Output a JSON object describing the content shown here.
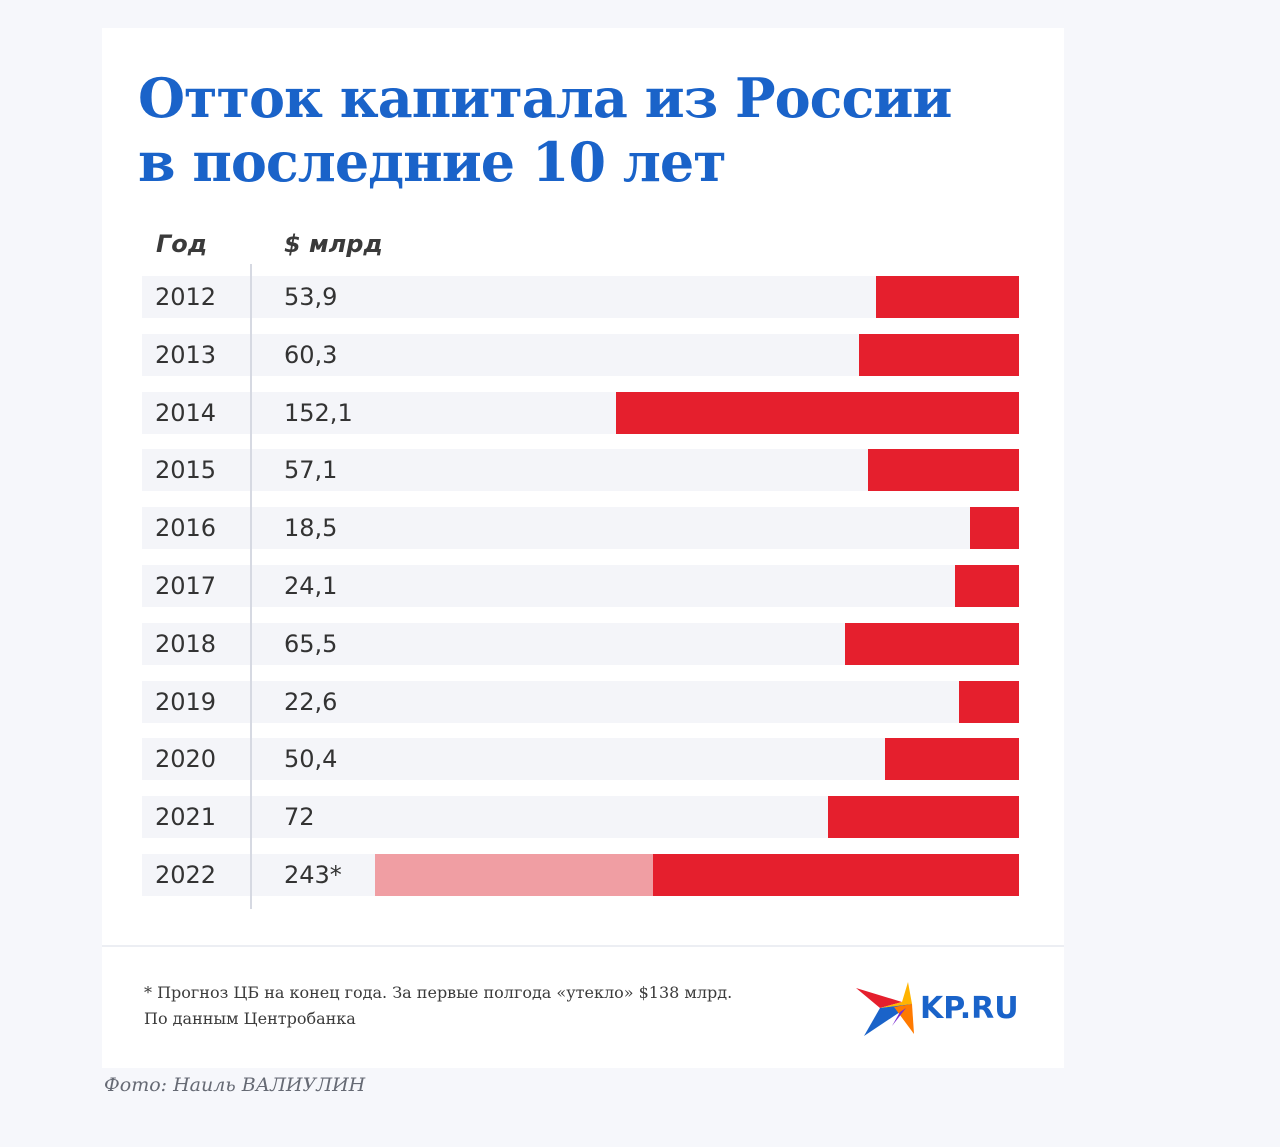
{
  "chart_data": {
    "type": "bar",
    "orientation": "horizontal",
    "title": [
      "Отток капитала из России",
      "в последние 10 лет"
    ],
    "columns": [
      "Год",
      "$ млрд"
    ],
    "categories": [
      "2012",
      "2013",
      "2014",
      "2015",
      "2016",
      "2017",
      "2018",
      "2019",
      "2020",
      "2021",
      "2022"
    ],
    "values": [
      53.9,
      60.3,
      152.1,
      57.1,
      18.5,
      24.1,
      65.5,
      22.6,
      50.4,
      72,
      243
    ],
    "value_labels": [
      "53,9",
      "60,3",
      "152,1",
      "57,1",
      "18,5",
      "24,1",
      "65,5",
      "22,6",
      "50,4",
      "72",
      "243*"
    ],
    "partial": {
      "category": "2022",
      "value": 138
    },
    "colors": {
      "bar": "#e51f2d",
      "forecast": "#f09ea3",
      "title": "#1a63c9"
    }
  },
  "footnote": "* Прогноз ЦБ на конец года. За первые полгода «утекло» $138 млрд.",
  "source": "По данным Центробанка",
  "logo_text": "KP.RU",
  "caption": "Фото: Наиль ВАЛИУЛИН"
}
